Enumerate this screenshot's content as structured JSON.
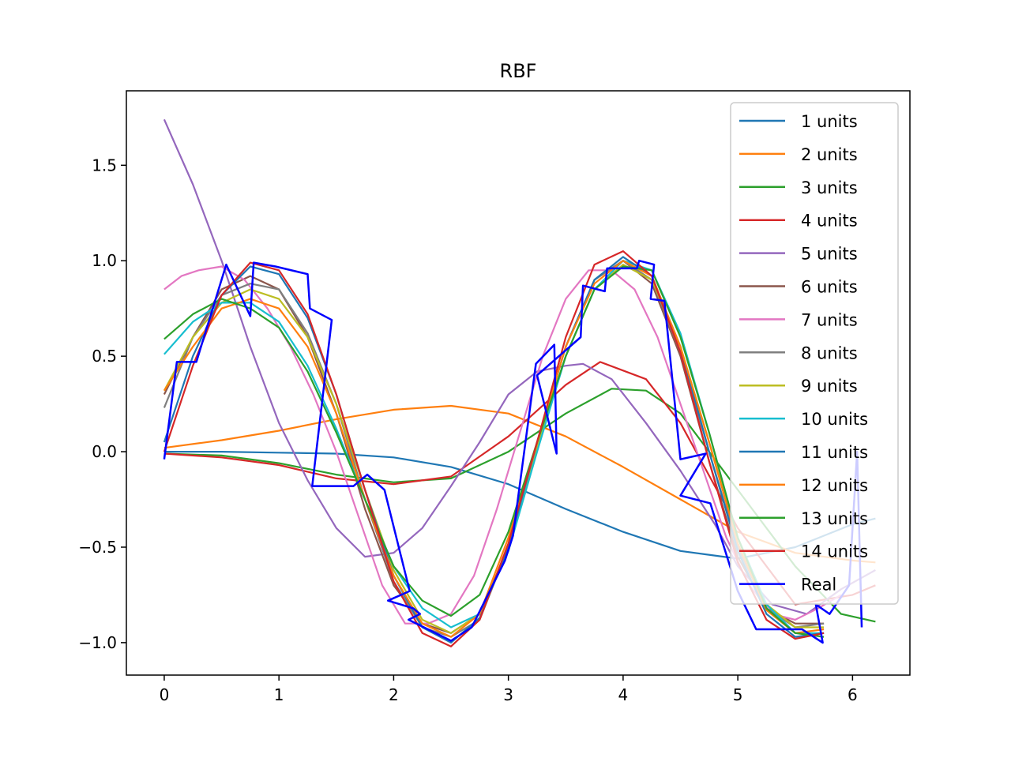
{
  "chart_data": {
    "type": "line",
    "title": "RBF",
    "xlabel": "",
    "ylabel": "",
    "xlim": [
      -0.33,
      6.5
    ],
    "ylim": [
      -1.17,
      1.89
    ],
    "xticks": [
      0,
      1,
      2,
      3,
      4,
      5,
      6
    ],
    "yticks": [
      -1.0,
      -0.5,
      0.0,
      0.5,
      1.0,
      1.5
    ],
    "xtick_labels": [
      "0",
      "1",
      "2",
      "3",
      "4",
      "5",
      "6"
    ],
    "ytick_labels": [
      "−1.0",
      "−0.5",
      "0.0",
      "0.5",
      "1.0",
      "1.5"
    ],
    "grid": false,
    "legend_position": "right",
    "series": [
      {
        "name": "1 units",
        "color": "#1f77b4",
        "x": [
          0,
          0.5,
          1.0,
          1.5,
          2.0,
          2.5,
          3.0,
          3.5,
          4.0,
          4.5,
          5.0,
          5.5,
          6.0,
          6.2
        ],
        "y": [
          0.0,
          0.0,
          -0.005,
          -0.01,
          -0.03,
          -0.08,
          -0.17,
          -0.3,
          -0.42,
          -0.52,
          -0.56,
          -0.5,
          -0.38,
          -0.35
        ]
      },
      {
        "name": "2 units",
        "color": "#ff7f0e",
        "x": [
          0,
          0.5,
          1.0,
          1.5,
          2.0,
          2.5,
          3.0,
          3.5,
          4.0,
          4.5,
          5.0,
          5.5,
          6.0,
          6.2
        ],
        "y": [
          0.02,
          0.06,
          0.11,
          0.17,
          0.22,
          0.24,
          0.2,
          0.08,
          -0.08,
          -0.25,
          -0.42,
          -0.53,
          -0.57,
          -0.58
        ]
      },
      {
        "name": "3 units",
        "color": "#2ca02c",
        "x": [
          0,
          0.5,
          1.0,
          1.5,
          2.0,
          2.5,
          3.0,
          3.5,
          3.9,
          4.2,
          4.5,
          5.0,
          5.5,
          5.9,
          6.2
        ],
        "y": [
          -0.01,
          -0.02,
          -0.06,
          -0.12,
          -0.16,
          -0.14,
          0.0,
          0.2,
          0.33,
          0.32,
          0.2,
          -0.2,
          -0.6,
          -0.85,
          -0.89
        ]
      },
      {
        "name": "4 units",
        "color": "#d62728",
        "x": [
          0,
          0.5,
          1.0,
          1.5,
          2.0,
          2.5,
          3.0,
          3.5,
          3.8,
          4.2,
          4.5,
          5.0,
          5.5,
          6.0,
          6.2
        ],
        "y": [
          -0.01,
          -0.03,
          -0.07,
          -0.14,
          -0.17,
          -0.13,
          0.08,
          0.35,
          0.47,
          0.38,
          0.15,
          -0.4,
          -0.8,
          -0.75,
          -0.7
        ]
      },
      {
        "name": "5 units",
        "color": "#9467bd",
        "x": [
          0,
          0.25,
          0.5,
          0.75,
          1.0,
          1.25,
          1.5,
          1.75,
          2.0,
          2.25,
          2.5,
          2.75,
          3.0,
          3.25,
          3.5,
          3.65,
          3.9,
          4.2,
          4.5,
          4.8,
          5.0,
          5.3,
          5.6,
          5.9,
          6.2
        ],
        "y": [
          1.74,
          1.4,
          1.0,
          0.55,
          0.15,
          -0.15,
          -0.4,
          -0.55,
          -0.53,
          -0.4,
          -0.18,
          0.05,
          0.3,
          0.42,
          0.45,
          0.46,
          0.38,
          0.15,
          -0.1,
          -0.38,
          -0.6,
          -0.8,
          -0.85,
          -0.72,
          -0.62
        ]
      },
      {
        "name": "6 units",
        "color": "#8c564b",
        "x": [
          0,
          0.25,
          0.5,
          0.75,
          1.0,
          1.25,
          1.5,
          1.75,
          2.0,
          2.25,
          2.5,
          2.75,
          3.0,
          3.25,
          3.5,
          3.75,
          4.0,
          4.25,
          4.5,
          4.75,
          5.0,
          5.25,
          5.5,
          5.75
        ],
        "y": [
          0.3,
          0.6,
          0.85,
          0.92,
          0.85,
          0.6,
          0.2,
          -0.3,
          -0.7,
          -0.9,
          -0.95,
          -0.85,
          -0.5,
          0.05,
          0.55,
          0.9,
          1.0,
          0.88,
          0.5,
          -0.05,
          -0.55,
          -0.82,
          -0.9,
          -0.9
        ]
      },
      {
        "name": "7 units",
        "color": "#e377c2",
        "x": [
          0,
          0.15,
          0.3,
          0.5,
          0.7,
          0.9,
          1.1,
          1.3,
          1.5,
          1.7,
          1.9,
          2.1,
          2.3,
          2.5,
          2.7,
          2.9,
          3.1,
          3.3,
          3.5,
          3.7,
          3.9,
          4.1,
          4.3,
          4.5,
          4.7,
          4.9,
          5.1,
          5.3,
          5.5,
          5.7,
          5.9
        ],
        "y": [
          0.85,
          0.92,
          0.95,
          0.97,
          0.9,
          0.75,
          0.55,
          0.3,
          0.0,
          -0.35,
          -0.7,
          -0.9,
          -0.9,
          -0.85,
          -0.65,
          -0.3,
          0.1,
          0.5,
          0.8,
          0.95,
          0.95,
          0.85,
          0.6,
          0.25,
          -0.1,
          -0.45,
          -0.7,
          -0.85,
          -0.88,
          -0.82,
          -0.75
        ]
      },
      {
        "name": "8 units",
        "color": "#7f7f7f",
        "x": [
          0,
          0.25,
          0.5,
          0.75,
          1.0,
          1.25,
          1.5,
          1.75,
          2.0,
          2.25,
          2.5,
          2.75,
          3.0,
          3.25,
          3.5,
          3.75,
          4.0,
          4.25,
          4.5,
          4.75,
          5.0,
          5.25,
          5.5,
          5.75
        ],
        "y": [
          0.23,
          0.6,
          0.82,
          0.88,
          0.85,
          0.62,
          0.25,
          -0.25,
          -0.68,
          -0.92,
          -0.97,
          -0.88,
          -0.5,
          0.05,
          0.55,
          0.9,
          1.0,
          0.9,
          0.52,
          0.0,
          -0.5,
          -0.82,
          -0.92,
          -0.9
        ]
      },
      {
        "name": "9 units",
        "color": "#bcbd22",
        "x": [
          0,
          0.25,
          0.5,
          0.75,
          1.0,
          1.25,
          1.5,
          1.75,
          2.0,
          2.25,
          2.5,
          2.75,
          3.0,
          3.25,
          3.5,
          3.75,
          4.0,
          4.25,
          4.5,
          4.75,
          5.0,
          5.25,
          5.5,
          5.75
        ],
        "y": [
          0.32,
          0.6,
          0.78,
          0.85,
          0.8,
          0.6,
          0.25,
          -0.2,
          -0.62,
          -0.88,
          -0.95,
          -0.85,
          -0.5,
          0.02,
          0.5,
          0.85,
          0.98,
          0.9,
          0.55,
          0.05,
          -0.45,
          -0.8,
          -0.92,
          -0.92
        ]
      },
      {
        "name": "10 units",
        "color": "#17becf",
        "x": [
          0,
          0.25,
          0.5,
          0.75,
          1.0,
          1.25,
          1.5,
          1.75,
          2.0,
          2.25,
          2.5,
          2.75,
          3.0,
          3.25,
          3.5,
          3.75,
          4.0,
          4.25,
          4.5,
          4.75,
          5.0,
          5.25,
          5.5,
          5.75
        ],
        "y": [
          0.51,
          0.68,
          0.78,
          0.78,
          0.68,
          0.45,
          0.12,
          -0.25,
          -0.6,
          -0.82,
          -0.92,
          -0.85,
          -0.52,
          0.0,
          0.5,
          0.85,
          1.0,
          0.95,
          0.62,
          0.1,
          -0.45,
          -0.8,
          -0.95,
          -0.95
        ]
      },
      {
        "name": "11 units",
        "color": "#1f77b4",
        "x": [
          0,
          0.25,
          0.5,
          0.75,
          1.0,
          1.25,
          1.5,
          1.75,
          2.0,
          2.25,
          2.5,
          2.75,
          3.0,
          3.25,
          3.5,
          3.75,
          4.0,
          4.25,
          4.5,
          4.75,
          5.0,
          5.25,
          5.5,
          5.75
        ],
        "y": [
          0.05,
          0.5,
          0.82,
          0.97,
          0.93,
          0.7,
          0.3,
          -0.2,
          -0.65,
          -0.92,
          -1.0,
          -0.87,
          -0.5,
          0.05,
          0.55,
          0.9,
          1.02,
          0.92,
          0.55,
          0.0,
          -0.52,
          -0.85,
          -0.97,
          -0.95
        ]
      },
      {
        "name": "12 units",
        "color": "#ff7f0e",
        "x": [
          0,
          0.25,
          0.5,
          0.75,
          1.0,
          1.25,
          1.5,
          1.75,
          2.0,
          2.25,
          2.5,
          2.75,
          3.0,
          3.25,
          3.5,
          3.75,
          4.0,
          4.25,
          4.5,
          4.75,
          5.0,
          5.25,
          5.5,
          5.75
        ],
        "y": [
          0.32,
          0.55,
          0.75,
          0.8,
          0.75,
          0.55,
          0.2,
          -0.25,
          -0.65,
          -0.9,
          -0.97,
          -0.85,
          -0.45,
          0.05,
          0.55,
          0.88,
          1.0,
          0.92,
          0.55,
          0.05,
          -0.48,
          -0.83,
          -0.95,
          -0.93
        ]
      },
      {
        "name": "13 units",
        "color": "#2ca02c",
        "x": [
          0,
          0.25,
          0.5,
          0.75,
          1.0,
          1.25,
          1.5,
          1.75,
          2.0,
          2.25,
          2.5,
          2.75,
          3.0,
          3.25,
          3.5,
          3.75,
          4.0,
          4.25,
          4.5,
          4.75,
          5.0,
          5.25,
          5.5,
          5.75
        ],
        "y": [
          0.59,
          0.72,
          0.8,
          0.75,
          0.65,
          0.42,
          0.1,
          -0.25,
          -0.6,
          -0.78,
          -0.86,
          -0.75,
          -0.42,
          0.05,
          0.5,
          0.85,
          0.97,
          0.95,
          0.6,
          0.1,
          -0.45,
          -0.82,
          -0.95,
          -0.97
        ]
      },
      {
        "name": "14 units",
        "color": "#d62728",
        "x": [
          0,
          0.25,
          0.5,
          0.75,
          1.0,
          1.25,
          1.5,
          1.75,
          2.0,
          2.25,
          2.5,
          2.75,
          3.0,
          3.25,
          3.5,
          3.75,
          4.0,
          4.25,
          4.5,
          4.75,
          5.0,
          5.25,
          5.5,
          5.75
        ],
        "y": [
          0.0,
          0.45,
          0.82,
          0.99,
          0.95,
          0.72,
          0.3,
          -0.2,
          -0.68,
          -0.95,
          -1.02,
          -0.88,
          -0.48,
          0.05,
          0.6,
          0.98,
          1.05,
          0.92,
          0.52,
          -0.05,
          -0.58,
          -0.88,
          -0.98,
          -0.95
        ]
      },
      {
        "name": "Real",
        "color": "#0000ff",
        "x": [
          0.0,
          0.11,
          0.28,
          0.54,
          0.75,
          0.78,
          0.97,
          1.25,
          1.27,
          1.46,
          1.29,
          1.65,
          1.77,
          1.92,
          2.14,
          1.95,
          2.17,
          2.23,
          2.13,
          2.5,
          2.68,
          2.97,
          3.04,
          3.24,
          3.4,
          3.42,
          3.25,
          3.63,
          3.65,
          3.84,
          3.86,
          4.12,
          4.14,
          4.27,
          4.24,
          4.36,
          4.5,
          4.72,
          4.5,
          4.76,
          5.0,
          5.16,
          5.56,
          5.74,
          5.68,
          5.8,
          5.97,
          6.04,
          6.08
        ],
        "y": [
          -0.04,
          0.47,
          0.47,
          0.98,
          0.71,
          0.99,
          0.97,
          0.93,
          0.75,
          0.69,
          -0.18,
          -0.18,
          -0.12,
          -0.2,
          -0.73,
          -0.78,
          -0.82,
          -0.85,
          -0.88,
          -0.99,
          -0.92,
          -0.57,
          -0.44,
          0.46,
          0.56,
          -0.01,
          0.4,
          0.6,
          0.87,
          0.84,
          0.96,
          0.96,
          1.0,
          0.98,
          0.8,
          0.79,
          -0.04,
          -0.01,
          -0.23,
          -0.27,
          -0.73,
          -0.93,
          -0.93,
          -1.0,
          -0.8,
          -0.85,
          -0.7,
          0.0,
          -0.92
        ]
      }
    ]
  }
}
